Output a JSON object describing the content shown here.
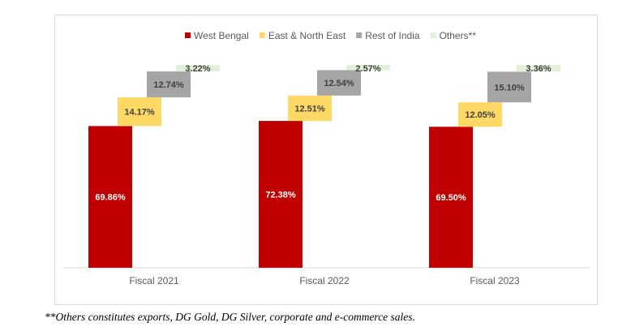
{
  "chart_data": {
    "type": "bar",
    "subtype": "stacked-waterfall",
    "categories": [
      "Fiscal 2021",
      "Fiscal 2022",
      "Fiscal 2023"
    ],
    "series": [
      {
        "name": "West Bengal",
        "color": "#c00000",
        "values": [
          69.86,
          72.38,
          69.5
        ],
        "labels": [
          "69.86%",
          "72.38%",
          "69.50%"
        ],
        "label_color": "#ffffff"
      },
      {
        "name": "East & North East",
        "color": "#ffd966",
        "values": [
          14.17,
          12.51,
          12.05
        ],
        "labels": [
          "14.17%",
          "12.51%",
          "12.05%"
        ],
        "label_color": "#404040"
      },
      {
        "name": "Rest of India",
        "color": "#a5a5a5",
        "values": [
          12.74,
          12.54,
          15.1
        ],
        "labels": [
          "12.74%",
          "12.54%",
          "15.10%"
        ],
        "label_color": "#404040"
      },
      {
        "name": "Others**",
        "color": "#e2efda",
        "values": [
          3.22,
          2.57,
          3.36
        ],
        "labels": [
          "3.22%",
          "2.57%",
          "3.36%"
        ],
        "label_color": "#404040"
      }
    ],
    "ylim": [
      0,
      100
    ],
    "grid": false,
    "legend_position": "top"
  },
  "caption": "**Others constitutes exports, DG Gold, DG Silver, corporate and e-commerce sales."
}
